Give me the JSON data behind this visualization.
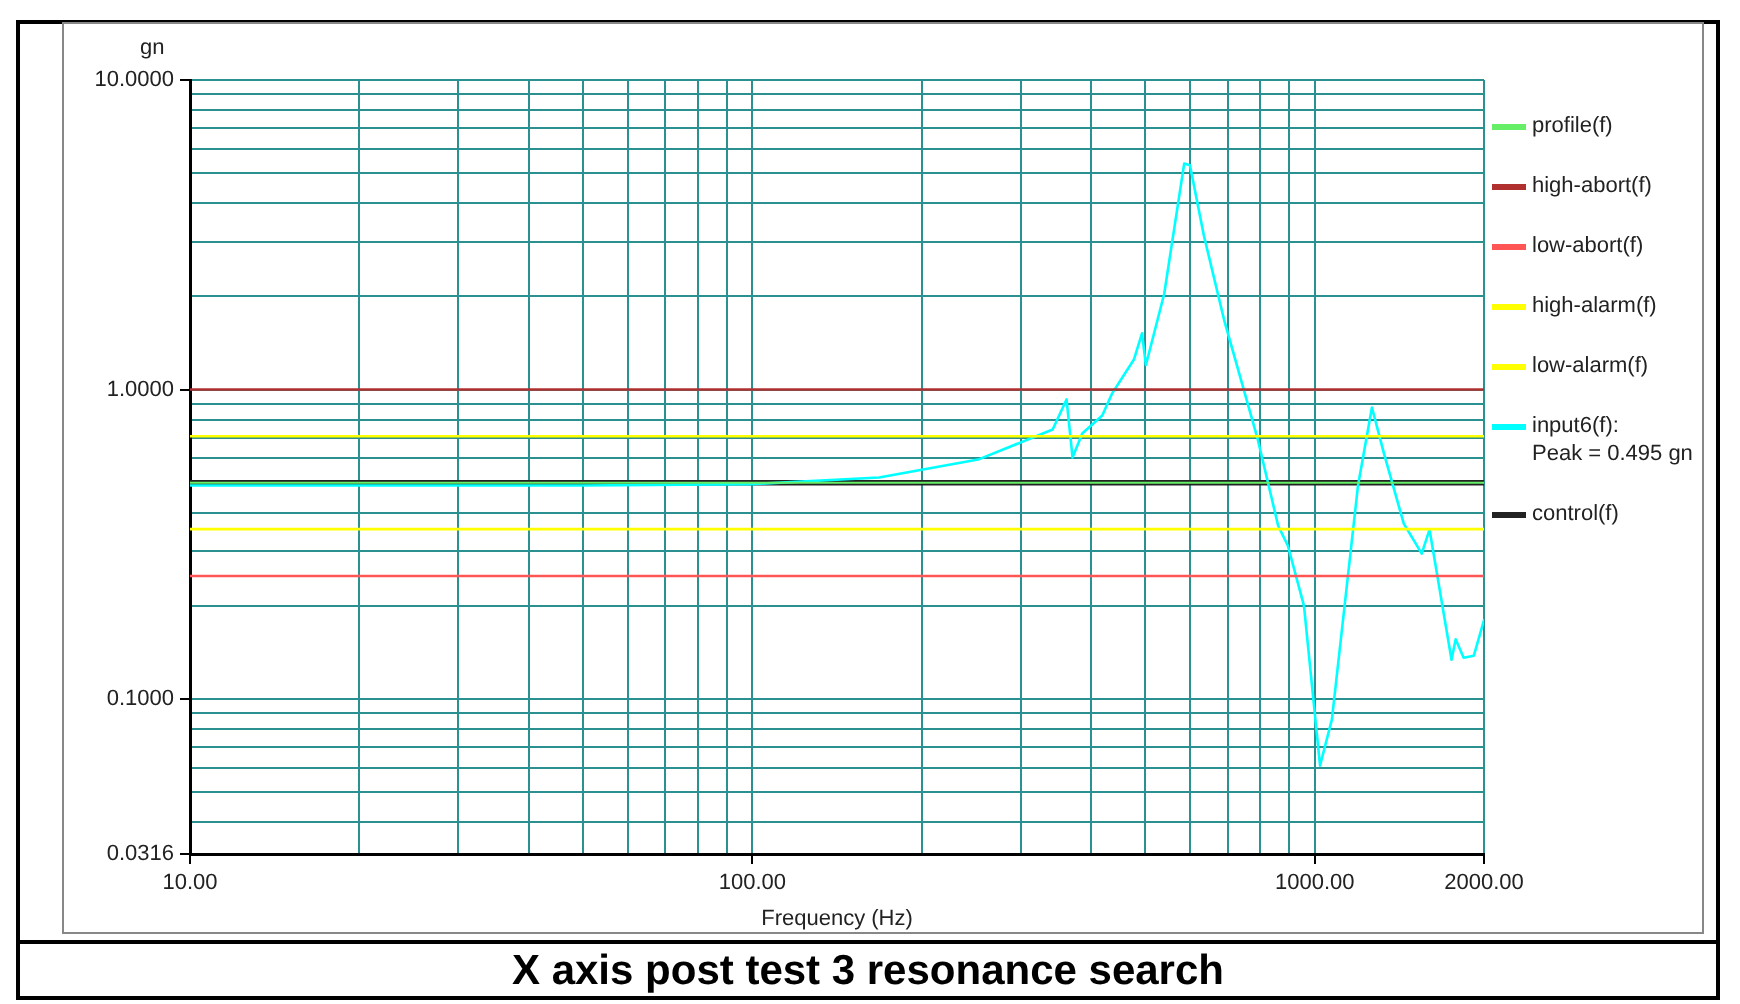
{
  "chart_data": {
    "type": "line",
    "title": "X axis post test 3 resonance search",
    "xlabel": "Frequency (Hz)",
    "ylabel": "gn",
    "log": "xy",
    "grid": true,
    "legend": "right",
    "marker": "none",
    "line_style": "solid",
    "xlim": [
      10,
      2000
    ],
    "xticks": [
      {
        "value": 10,
        "label": "10.00"
      },
      {
        "value": 20,
        "label": null
      },
      {
        "value": 30,
        "label": null
      },
      {
        "value": 40,
        "label": null
      },
      {
        "value": 50,
        "label": null
      },
      {
        "value": 60,
        "label": null
      },
      {
        "value": 70,
        "label": null
      },
      {
        "value": 80,
        "label": null
      },
      {
        "value": 90,
        "label": null
      },
      {
        "value": 100,
        "label": "100.00"
      },
      {
        "value": 200,
        "label": null
      },
      {
        "value": 300,
        "label": null
      },
      {
        "value": 400,
        "label": null
      },
      {
        "value": 500,
        "label": null
      },
      {
        "value": 600,
        "label": null
      },
      {
        "value": 700,
        "label": null
      },
      {
        "value": 800,
        "label": null
      },
      {
        "value": 900,
        "label": null
      },
      {
        "value": 1000,
        "label": "1000.00"
      },
      {
        "value": 2000,
        "label": "2000.00"
      }
    ],
    "ylim": [
      0.0316,
      10
    ],
    "yticks": [
      {
        "value": 0.0316,
        "label": "0.0316"
      },
      {
        "value": 0.04,
        "label": null
      },
      {
        "value": 0.05,
        "label": null
      },
      {
        "value": 0.06,
        "label": null
      },
      {
        "value": 0.07,
        "label": null
      },
      {
        "value": 0.08,
        "label": null
      },
      {
        "value": 0.09,
        "label": null
      },
      {
        "value": 0.1,
        "label": "0.1000"
      },
      {
        "value": 0.2,
        "label": null
      },
      {
        "value": 0.3,
        "label": null
      },
      {
        "value": 0.4,
        "label": null
      },
      {
        "value": 0.5,
        "label": null
      },
      {
        "value": 0.6,
        "label": null
      },
      {
        "value": 0.7,
        "label": null
      },
      {
        "value": 0.8,
        "label": null
      },
      {
        "value": 0.9,
        "label": null
      },
      {
        "value": 1,
        "label": "1.0000"
      },
      {
        "value": 2,
        "label": null
      },
      {
        "value": 3,
        "label": null
      },
      {
        "value": 4,
        "label": null
      },
      {
        "value": 5,
        "label": null
      },
      {
        "value": 6,
        "label": null
      },
      {
        "value": 7,
        "label": null
      },
      {
        "value": 8,
        "label": null
      },
      {
        "value": 9,
        "label": null
      },
      {
        "value": 10,
        "label": "10.0000"
      }
    ],
    "series": [
      {
        "name": "profile(f)",
        "color": "#66ee66",
        "x": [
          10,
          2000
        ],
        "values": [
          0.5,
          0.5
        ]
      },
      {
        "name": "high-abort(f)",
        "color": "#b03030",
        "x": [
          10,
          2000
        ],
        "values": [
          1,
          1
        ]
      },
      {
        "name": "low-abort(f)",
        "color": "#ff5555",
        "x": [
          10,
          2000
        ],
        "values": [
          0.25,
          0.25
        ]
      },
      {
        "name": "high-alarm(f)",
        "color": "#ffff00",
        "x": [
          10,
          2000
        ],
        "values": [
          0.707,
          0.707
        ]
      },
      {
        "name": "low-alarm(f)",
        "color": "#ffff00",
        "x": [
          10,
          2000
        ],
        "values": [
          0.354,
          0.354
        ]
      },
      {
        "name": "input6(f):\nPeak = 0.495 gn",
        "color": "#00ffff",
        "x": [
          10,
          50,
          100,
          168,
          252,
          342,
          362,
          371,
          386,
          419,
          436,
          477,
          493,
          501,
          540,
          586,
          600,
          635,
          690,
          792,
          861,
          896,
          957,
          1022,
          1073,
          1194,
          1264,
          1328,
          1440,
          1550,
          1600,
          1751,
          1781,
          1840,
          1918,
          2000
        ],
        "values": [
          0.49,
          0.49,
          0.495,
          0.52,
          0.594,
          0.743,
          0.929,
          0.603,
          0.721,
          0.824,
          0.97,
          1.25,
          1.52,
          1.2,
          2.04,
          5.37,
          5.3,
          3.15,
          1.68,
          0.69,
          0.363,
          0.313,
          0.2,
          0.061,
          0.086,
          0.49,
          0.875,
          0.621,
          0.369,
          0.295,
          0.353,
          0.134,
          0.156,
          0.136,
          0.138,
          0.18
        ]
      },
      {
        "name": "control(f)",
        "color": "#222222",
        "x": [
          10,
          2000
        ],
        "values": [
          0.5,
          0.5
        ]
      }
    ]
  }
}
